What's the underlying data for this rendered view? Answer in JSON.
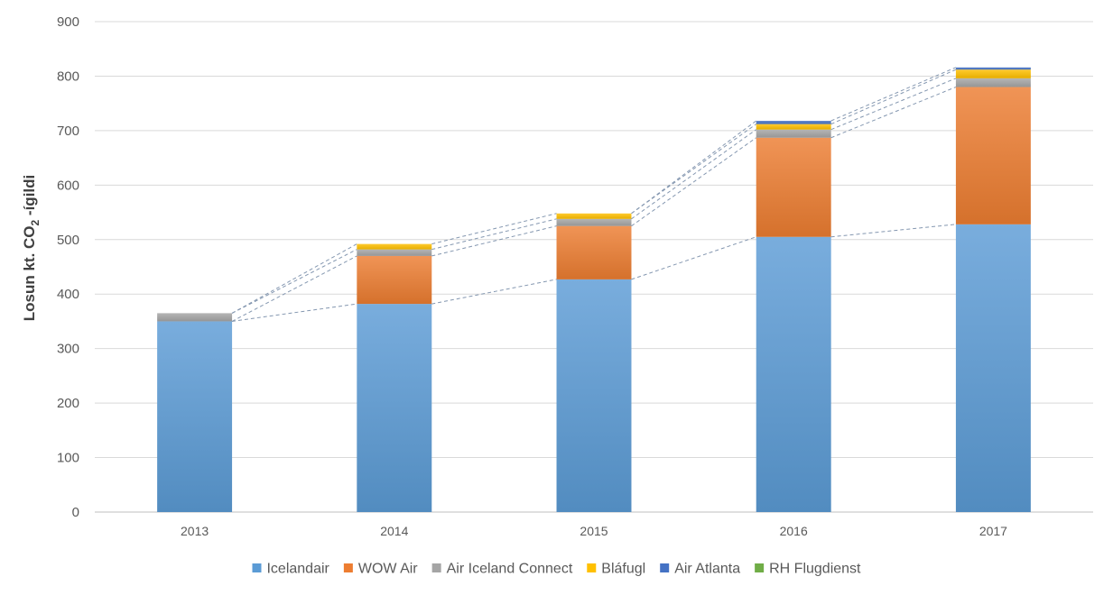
{
  "chart_data": {
    "type": "bar",
    "stacked": true,
    "categories": [
      "2013",
      "2014",
      "2015",
      "2016",
      "2017"
    ],
    "ylabel_main": "Losun kt. CO",
    "ylabel_sub": "2",
    "ylabel_tail": " -ígildi",
    "ylim": [
      0,
      900
    ],
    "yticks": [
      "0",
      "100",
      "200",
      "300",
      "400",
      "500",
      "600",
      "700",
      "800",
      "900"
    ],
    "grid": true,
    "legend_position": "bottom",
    "connector_lines": true,
    "series": [
      {
        "name": "Icelandair",
        "color": "#5b9bd5",
        "values": [
          350,
          382,
          427,
          505,
          528
        ]
      },
      {
        "name": "WOW Air",
        "color": "#ed7d31",
        "values": [
          0,
          88,
          98,
          182,
          252
        ]
      },
      {
        "name": "Air Iceland Connect",
        "color": "#a5a5a5",
        "values": [
          15,
          12,
          13,
          15,
          16
        ]
      },
      {
        "name": "Bláfugl",
        "color": "#ffc000",
        "values": [
          0,
          10,
          10,
          10,
          16
        ]
      },
      {
        "name": "Air Atlanta",
        "color": "#4472c4",
        "values": [
          0,
          0,
          0,
          6,
          4
        ]
      },
      {
        "name": "RH Flugdienst",
        "color": "#70ad47",
        "values": [
          0,
          0,
          0,
          0,
          0
        ]
      }
    ]
  }
}
